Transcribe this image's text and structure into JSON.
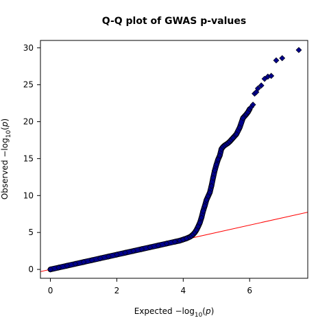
{
  "chart_data": {
    "type": "scatter",
    "title": "Q-Q plot of GWAS p-values",
    "xlabel": {
      "prefix": "Expected",
      "fn": "log",
      "sub": "10",
      "arg": "p"
    },
    "ylabel": {
      "prefix": "Observed",
      "fn": "log",
      "sub": "10",
      "arg": "p"
    },
    "xlim": [
      -0.3,
      7.75
    ],
    "ylim": [
      -1.2,
      31
    ],
    "xticks": [
      0,
      2,
      4,
      6
    ],
    "yticks": [
      0,
      5,
      10,
      15,
      20,
      25,
      30
    ],
    "grid": false,
    "legend": "none",
    "reference_line": {
      "slope": 1,
      "intercept": 0,
      "color": "#ff0000"
    },
    "point_color": "#00008b",
    "point_outline": "#000000",
    "series": [
      {
        "x": [
          0.0,
          0.25,
          0.5,
          0.75,
          1.0,
          1.25,
          1.5,
          1.75,
          2.0,
          2.25,
          2.5,
          2.75,
          3.0,
          3.25,
          3.5,
          3.75,
          3.9,
          4.0,
          4.1,
          4.2,
          4.25,
          4.3,
          4.35,
          4.4,
          4.45,
          4.5,
          4.55,
          4.6,
          4.65,
          4.7,
          4.75,
          4.8,
          4.85,
          4.9,
          4.95,
          5.0,
          5.05,
          5.1,
          5.15,
          5.2,
          5.25,
          5.3,
          5.35,
          5.4,
          5.45,
          5.5,
          5.6,
          5.7,
          5.8,
          5.9,
          5.95,
          6.0,
          6.05,
          6.1,
          6.15,
          6.2,
          6.25,
          6.35,
          6.45,
          6.55,
          6.65,
          6.8,
          6.98,
          7.48
        ],
        "y": [
          0.0,
          0.25,
          0.5,
          0.75,
          1.0,
          1.25,
          1.5,
          1.75,
          2.0,
          2.25,
          2.5,
          2.75,
          3.0,
          3.25,
          3.5,
          3.75,
          3.9,
          4.05,
          4.2,
          4.4,
          4.55,
          4.75,
          5.0,
          5.35,
          5.8,
          6.3,
          7.0,
          7.9,
          8.6,
          9.4,
          9.9,
          10.4,
          11.3,
          12.4,
          13.4,
          14.2,
          14.9,
          15.4,
          16.3,
          16.6,
          16.8,
          16.95,
          17.1,
          17.3,
          17.55,
          17.8,
          18.3,
          19.2,
          20.5,
          21.0,
          21.3,
          21.7,
          22.0,
          22.3,
          23.8,
          24.0,
          24.5,
          24.9,
          25.8,
          26.1,
          26.2,
          28.3,
          28.6,
          29.7
        ]
      }
    ]
  }
}
